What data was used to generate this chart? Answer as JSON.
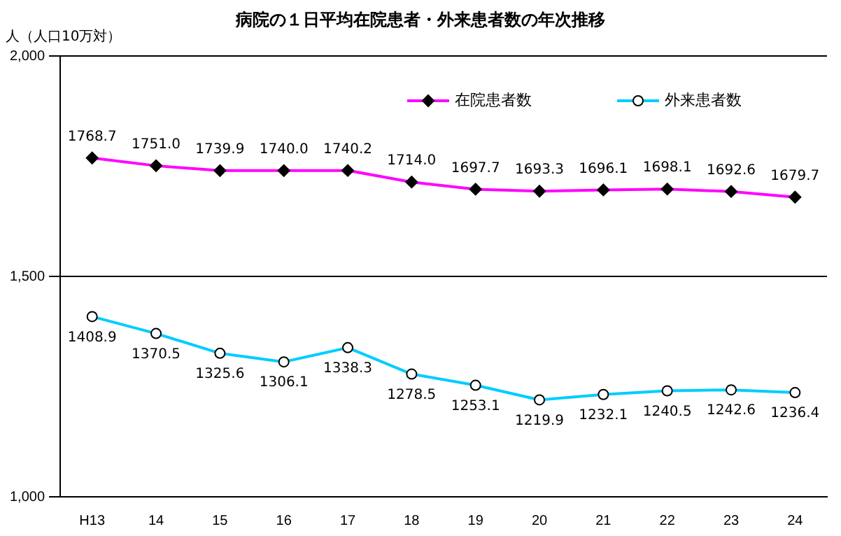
{
  "chart_data": {
    "type": "line",
    "title": "病院の１日平均在院患者・外来患者数の年次推移",
    "ylabel": "人（人口10万対）",
    "categories": [
      "H13",
      "14",
      "15",
      "16",
      "17",
      "18",
      "19",
      "20",
      "21",
      "22",
      "23",
      "24"
    ],
    "series": [
      {
        "name": "在院患者数",
        "color": "#ff00ff",
        "marker": "diamond",
        "values": [
          1768.7,
          1751.0,
          1739.9,
          1740.0,
          1740.2,
          1714.0,
          1697.7,
          1693.3,
          1696.1,
          1698.1,
          1692.6,
          1679.7
        ],
        "value_labels": [
          "1768.7",
          "1751.0",
          "1739.9",
          "1740.0",
          "1740.2",
          "1714.0",
          "1697.7",
          "1693.3",
          "1696.1",
          "1698.1",
          "1692.6",
          "1679.7"
        ]
      },
      {
        "name": "外来患者数",
        "color": "#00ccff",
        "marker": "circle",
        "values": [
          1408.9,
          1370.5,
          1325.6,
          1306.1,
          1338.3,
          1278.5,
          1253.1,
          1219.9,
          1232.1,
          1240.5,
          1242.6,
          1236.4
        ],
        "value_labels": [
          "1408.9",
          "1370.5",
          "1325.6",
          "1306.1",
          "1338.3",
          "1278.5",
          "1253.1",
          "1219.9",
          "1232.1",
          "1240.5",
          "1242.6",
          "1236.4"
        ]
      }
    ],
    "ylim": [
      1000,
      2000
    ],
    "yticks": [
      {
        "value": 1000,
        "label": "1,000"
      },
      {
        "value": 1500,
        "label": "1,500"
      },
      {
        "value": 2000,
        "label": "2,000"
      }
    ],
    "grid": "y",
    "legend": "top right"
  }
}
